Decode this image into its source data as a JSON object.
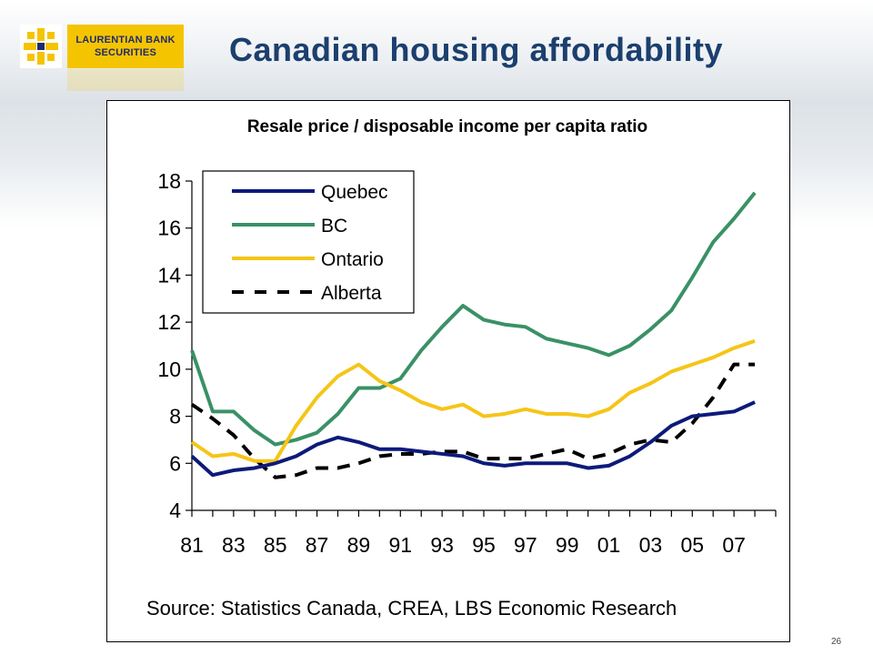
{
  "page": {
    "title": "Canadian housing affordability",
    "page_number": "26"
  },
  "logo": {
    "lines": [
      "LAURENTIAN BANK",
      "SECURITIES"
    ],
    "icon": "laurentian-flower-logo-icon",
    "color": "#f5c400"
  },
  "chart_data": {
    "type": "line",
    "title": "Resale price / disposable income per capita ratio",
    "xlabel": "",
    "ylabel": "",
    "source": "Source: Statistics Canada, CREA, LBS Economic Research",
    "x": [
      1981,
      1982,
      1983,
      1984,
      1985,
      1986,
      1987,
      1988,
      1989,
      1990,
      1991,
      1992,
      1993,
      1994,
      1995,
      1996,
      1997,
      1998,
      1999,
      2000,
      2001,
      2002,
      2003,
      2004,
      2005,
      2006,
      2007,
      2008
    ],
    "xticks": [
      1981,
      1983,
      1985,
      1987,
      1989,
      1991,
      1993,
      1995,
      1997,
      1999,
      2001,
      2003,
      2005,
      2007
    ],
    "xtick_labels": [
      "81",
      "83",
      "85",
      "87",
      "89",
      "91",
      "93",
      "95",
      "97",
      "99",
      "01",
      "03",
      "05",
      "07"
    ],
    "yticks": [
      4,
      6,
      8,
      10,
      12,
      14,
      16,
      18
    ],
    "ylim": [
      4,
      18
    ],
    "legend_position": "top-left",
    "grid": false,
    "series": [
      {
        "name": "Quebec",
        "color": "#0d1a7a",
        "dash": "solid",
        "values": [
          6.3,
          5.5,
          5.7,
          5.8,
          6.0,
          6.3,
          6.8,
          7.1,
          6.9,
          6.6,
          6.6,
          6.5,
          6.4,
          6.3,
          6.0,
          5.9,
          6.0,
          6.0,
          6.0,
          5.8,
          5.9,
          6.3,
          6.9,
          7.6,
          8.0,
          8.1,
          8.2,
          8.6
        ]
      },
      {
        "name": "BC",
        "color": "#3a9166",
        "dash": "solid",
        "values": [
          10.8,
          8.2,
          8.2,
          7.4,
          6.8,
          7.0,
          7.3,
          8.1,
          9.2,
          9.2,
          9.6,
          10.8,
          11.8,
          12.7,
          12.1,
          11.9,
          11.8,
          11.3,
          11.1,
          10.9,
          10.6,
          11.0,
          11.7,
          12.5,
          13.9,
          15.4,
          16.4,
          17.5
        ]
      },
      {
        "name": "Ontario",
        "color": "#f5c518",
        "dash": "solid",
        "values": [
          6.9,
          6.3,
          6.4,
          6.1,
          6.1,
          7.6,
          8.8,
          9.7,
          10.2,
          9.5,
          9.1,
          8.6,
          8.3,
          8.5,
          8.0,
          8.1,
          8.3,
          8.1,
          8.1,
          8.0,
          8.3,
          9.0,
          9.4,
          9.9,
          10.2,
          10.5,
          10.9,
          11.2
        ]
      },
      {
        "name": "Alberta",
        "color": "#000000",
        "dash": "dashed",
        "values": [
          8.5,
          7.9,
          7.2,
          6.2,
          5.4,
          5.5,
          5.8,
          5.8,
          6.0,
          6.3,
          6.4,
          6.4,
          6.5,
          6.5,
          6.2,
          6.2,
          6.2,
          6.4,
          6.6,
          6.2,
          6.4,
          6.8,
          7.0,
          6.9,
          7.7,
          8.8,
          10.2,
          10.2
        ]
      }
    ]
  }
}
